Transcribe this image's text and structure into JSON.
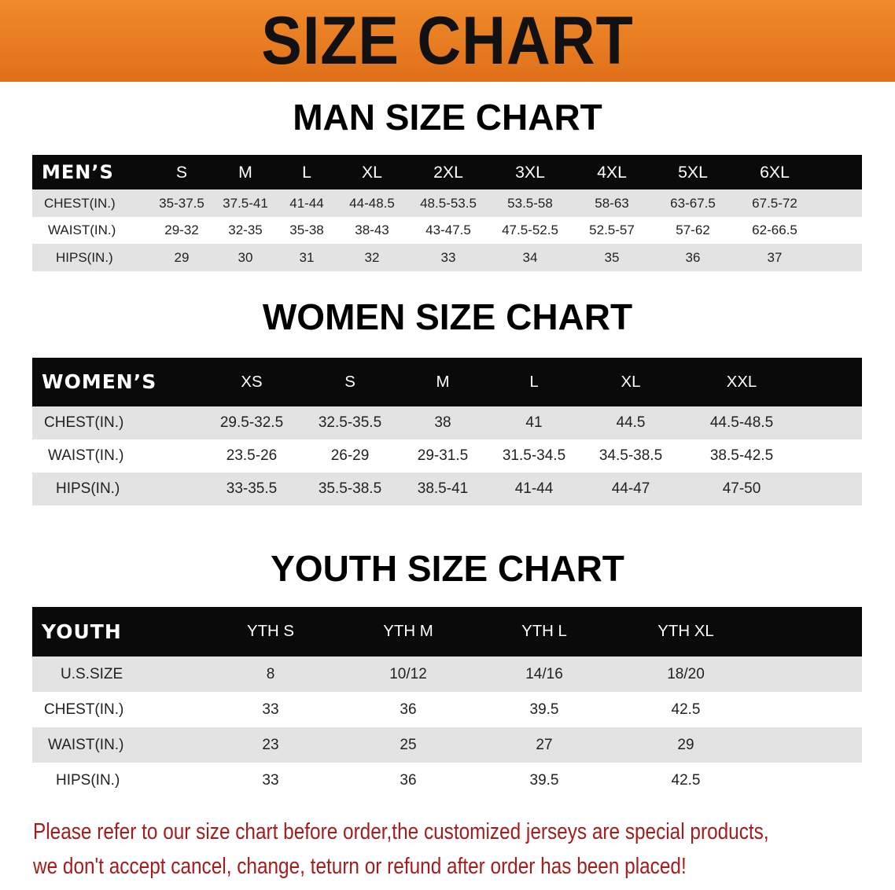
{
  "banner_title": "SIZE CHART",
  "men": {
    "title": "MAN SIZE CHART",
    "header": "MEN’S",
    "sizes": [
      "S",
      "M",
      "L",
      "XL",
      "2XL",
      "3XL",
      "4XL",
      "5XL",
      "6XL"
    ],
    "rows": [
      {
        "label": "CHEST(IN.)",
        "values": [
          "35-37.5",
          "37.5-41",
          "41-44",
          "44-48.5",
          "48.5-53.5",
          "53.5-58",
          "58-63",
          "63-67.5",
          "67.5-72"
        ]
      },
      {
        "label": "WAIST(IN.)",
        "values": [
          "29-32",
          "32-35",
          "35-38",
          "38-43",
          "43-47.5",
          "47.5-52.5",
          "52.5-57",
          "57-62",
          "62-66.5"
        ]
      },
      {
        "label": "HIPS(IN.)",
        "values": [
          "29",
          "30",
          "31",
          "32",
          "33",
          "34",
          "35",
          "36",
          "37"
        ]
      }
    ]
  },
  "women": {
    "title": "WOMEN SIZE CHART",
    "header": "WOMEN’S",
    "sizes": [
      "XS",
      "S",
      "M",
      "L",
      "XL",
      "XXL"
    ],
    "rows": [
      {
        "label": "CHEST(IN.)",
        "values": [
          "29.5-32.5",
          "32.5-35.5",
          "38",
          "41",
          "44.5",
          "44.5-48.5"
        ]
      },
      {
        "label": "WAIST(IN.)",
        "values": [
          "23.5-26",
          "26-29",
          "29-31.5",
          "31.5-34.5",
          "34.5-38.5",
          "38.5-42.5"
        ]
      },
      {
        "label": "HIPS(IN.)",
        "values": [
          "33-35.5",
          "35.5-38.5",
          "38.5-41",
          "41-44",
          "44-47",
          "47-50"
        ]
      }
    ]
  },
  "youth": {
    "title": "YOUTH SIZE CHART",
    "header": "YOUTH",
    "sizes": [
      "YTH S",
      "YTH M",
      "YTH L",
      "YTH XL"
    ],
    "rows": [
      {
        "label": "U.S.SIZE",
        "values": [
          "8",
          "10/12",
          "14/16",
          "18/20"
        ]
      },
      {
        "label": "CHEST(IN.)",
        "values": [
          "33",
          "36",
          "39.5",
          "42.5"
        ]
      },
      {
        "label": "WAIST(IN.)",
        "values": [
          "23",
          "25",
          "27",
          "29"
        ]
      },
      {
        "label": "HIPS(IN.)",
        "values": [
          "33",
          "36",
          "39.5",
          "42.5"
        ]
      }
    ]
  },
  "note": {
    "line1": "Please refer to our size chart before order,the customized jerseys are special products,",
    "line2": "we don't accept cancel, change, teturn or refund after order has been placed!"
  },
  "colors": {
    "banner": "#e8781e",
    "header_bg": "#0a0a0a",
    "row_gray": "#e3e3e3",
    "note": "#a51c1c"
  }
}
